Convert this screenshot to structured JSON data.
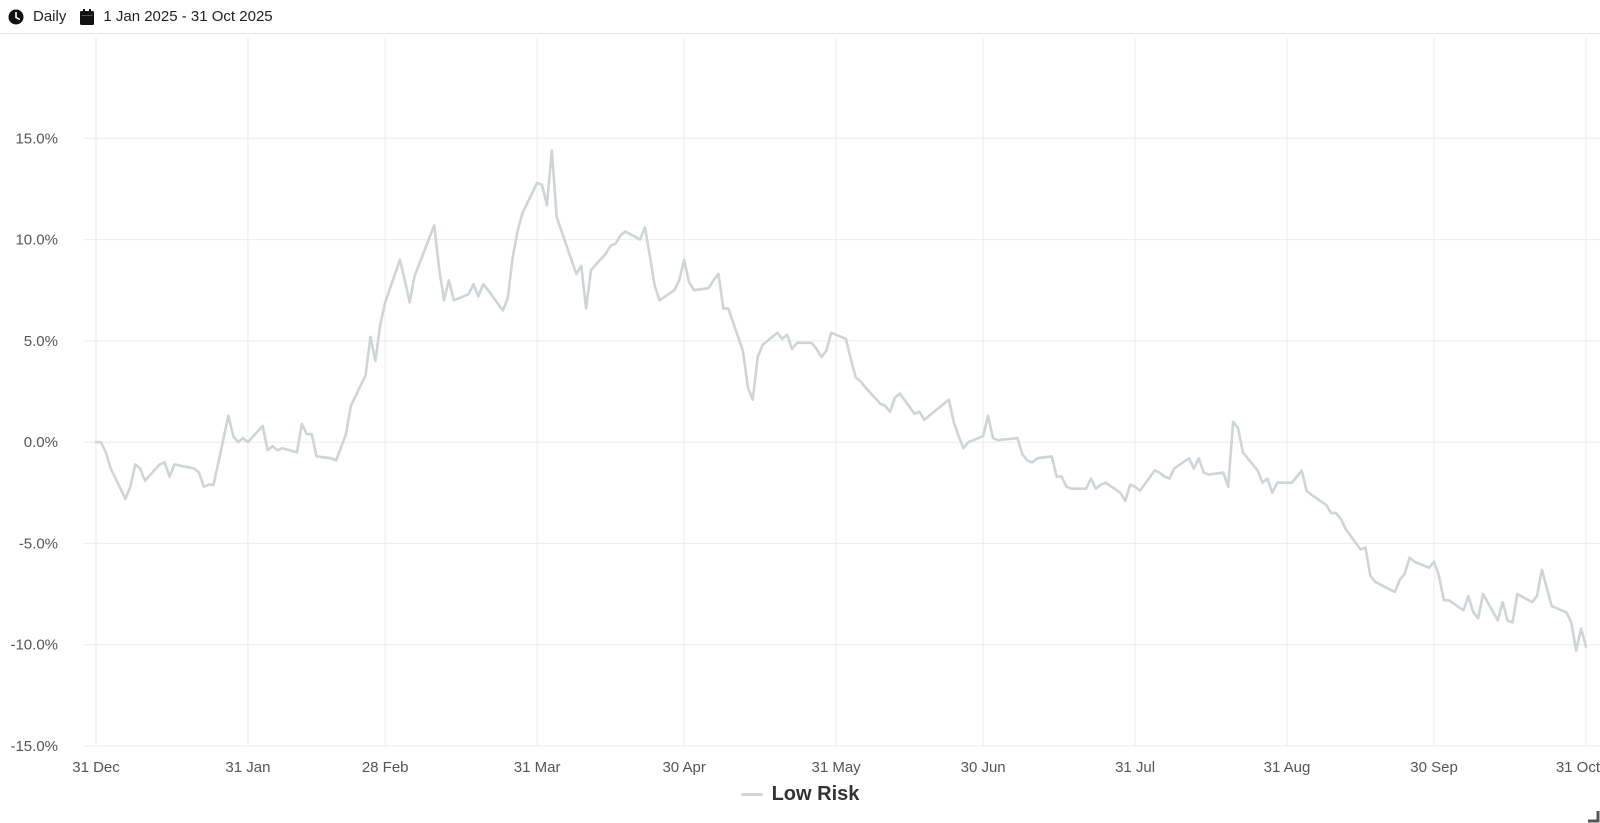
{
  "toolbar": {
    "frequency_label": "Daily",
    "frequency_icon": "clock-icon",
    "date_range_label": "1 Jan 2025 - 31 Oct 2025",
    "date_range_icon": "calendar-icon"
  },
  "colors": {
    "series_line": "#cfd4d7",
    "grid": "#ebebeb",
    "axis_text": "#555555"
  },
  "chart_data": {
    "type": "line",
    "title": "",
    "xlabel": "",
    "ylabel": "",
    "ylim": [
      -15,
      20
    ],
    "yticks": [
      -15,
      -10,
      -5,
      0,
      5,
      10,
      15
    ],
    "ytick_labels": [
      "-15.0%",
      "-10.0%",
      "-5.0%",
      "0.0%",
      "5.0%",
      "10.0%",
      "15.0%"
    ],
    "xlim": [
      "2024-12-31",
      "2025-10-31"
    ],
    "xticks": [
      "2024-12-31",
      "2025-01-31",
      "2025-02-28",
      "2025-03-31",
      "2025-04-30",
      "2025-05-31",
      "2025-06-30",
      "2025-07-31",
      "2025-08-31",
      "2025-09-30",
      "2025-10-31"
    ],
    "xtick_labels": [
      "31 Dec",
      "31 Jan",
      "28 Feb",
      "31 Mar",
      "30 Apr",
      "31 May",
      "30 Jun",
      "31 Jul",
      "31 Aug",
      "30 Sep",
      "31 Oct"
    ],
    "grid": true,
    "legend_position": "bottom-center",
    "series": [
      {
        "name": "Low Risk",
        "color": "#cfd4d7",
        "points": [
          [
            "2024-12-31",
            0.0
          ],
          [
            "2025-01-01",
            0.0
          ],
          [
            "2025-01-02",
            -0.5
          ],
          [
            "2025-01-03",
            -1.3
          ],
          [
            "2025-01-06",
            -2.8
          ],
          [
            "2025-01-07",
            -2.2
          ],
          [
            "2025-01-08",
            -1.1
          ],
          [
            "2025-01-09",
            -1.3
          ],
          [
            "2025-01-10",
            -1.9
          ],
          [
            "2025-01-13",
            -1.1
          ],
          [
            "2025-01-14",
            -1.0
          ],
          [
            "2025-01-15",
            -1.7
          ],
          [
            "2025-01-16",
            -1.1
          ],
          [
            "2025-01-20",
            -1.3
          ],
          [
            "2025-01-21",
            -1.5
          ],
          [
            "2025-01-22",
            -2.2
          ],
          [
            "2025-01-23",
            -2.1
          ],
          [
            "2025-01-24",
            -2.1
          ],
          [
            "2025-01-27",
            1.3
          ],
          [
            "2025-01-28",
            0.3
          ],
          [
            "2025-01-29",
            0.0
          ],
          [
            "2025-01-30",
            0.2
          ],
          [
            "2025-01-31",
            0.0
          ],
          [
            "2025-02-03",
            0.8
          ],
          [
            "2025-02-04",
            -0.4
          ],
          [
            "2025-02-05",
            -0.2
          ],
          [
            "2025-02-06",
            -0.4
          ],
          [
            "2025-02-07",
            -0.3
          ],
          [
            "2025-02-10",
            -0.5
          ],
          [
            "2025-02-11",
            0.9
          ],
          [
            "2025-02-12",
            0.4
          ],
          [
            "2025-02-13",
            0.4
          ],
          [
            "2025-02-14",
            -0.7
          ],
          [
            "2025-02-17",
            -0.8
          ],
          [
            "2025-02-18",
            -0.9
          ],
          [
            "2025-02-20",
            0.4
          ],
          [
            "2025-02-21",
            1.8
          ],
          [
            "2025-02-24",
            3.3
          ],
          [
            "2025-02-25",
            5.2
          ],
          [
            "2025-02-26",
            4.0
          ],
          [
            "2025-02-27",
            5.8
          ],
          [
            "2025-02-28",
            6.9
          ],
          [
            "2025-03-03",
            9.0
          ],
          [
            "2025-03-04",
            8.0
          ],
          [
            "2025-03-05",
            6.9
          ],
          [
            "2025-03-06",
            8.2
          ],
          [
            "2025-03-10",
            10.7
          ],
          [
            "2025-03-11",
            8.6
          ],
          [
            "2025-03-12",
            7.0
          ],
          [
            "2025-03-13",
            8.0
          ],
          [
            "2025-03-14",
            7.0
          ],
          [
            "2025-03-17",
            7.3
          ],
          [
            "2025-03-18",
            7.8
          ],
          [
            "2025-03-19",
            7.2
          ],
          [
            "2025-03-20",
            7.8
          ],
          [
            "2025-03-21",
            7.5
          ],
          [
            "2025-03-24",
            6.5
          ],
          [
            "2025-03-25",
            7.1
          ],
          [
            "2025-03-26",
            9.1
          ],
          [
            "2025-03-27",
            10.4
          ],
          [
            "2025-03-28",
            11.3
          ],
          [
            "2025-03-31",
            12.8
          ],
          [
            "2025-04-01",
            12.7
          ],
          [
            "2025-04-02",
            11.7
          ],
          [
            "2025-04-03",
            14.4
          ],
          [
            "2025-04-04",
            11.1
          ],
          [
            "2025-04-07",
            9.0
          ],
          [
            "2025-04-08",
            8.3
          ],
          [
            "2025-04-09",
            8.7
          ],
          [
            "2025-04-10",
            6.6
          ],
          [
            "2025-04-11",
            8.5
          ],
          [
            "2025-04-14",
            9.3
          ],
          [
            "2025-04-15",
            9.7
          ],
          [
            "2025-04-16",
            9.8
          ],
          [
            "2025-04-17",
            10.2
          ],
          [
            "2025-04-18",
            10.4
          ],
          [
            "2025-04-21",
            10.0
          ],
          [
            "2025-04-22",
            10.6
          ],
          [
            "2025-04-23",
            9.2
          ],
          [
            "2025-04-24",
            7.7
          ],
          [
            "2025-04-25",
            7.0
          ],
          [
            "2025-04-28",
            7.5
          ],
          [
            "2025-04-29",
            8.0
          ],
          [
            "2025-04-30",
            9.0
          ],
          [
            "2025-05-01",
            7.9
          ],
          [
            "2025-05-02",
            7.5
          ],
          [
            "2025-05-05",
            7.6
          ],
          [
            "2025-05-06",
            8.0
          ],
          [
            "2025-05-07",
            8.3
          ],
          [
            "2025-05-08",
            6.6
          ],
          [
            "2025-05-09",
            6.6
          ],
          [
            "2025-05-12",
            4.5
          ],
          [
            "2025-05-13",
            2.7
          ],
          [
            "2025-05-14",
            2.1
          ],
          [
            "2025-05-15",
            4.2
          ],
          [
            "2025-05-16",
            4.8
          ],
          [
            "2025-05-19",
            5.4
          ],
          [
            "2025-05-20",
            5.1
          ],
          [
            "2025-05-21",
            5.3
          ],
          [
            "2025-05-22",
            4.6
          ],
          [
            "2025-05-23",
            4.9
          ],
          [
            "2025-05-26",
            4.9
          ],
          [
            "2025-05-27",
            4.6
          ],
          [
            "2025-05-28",
            4.2
          ],
          [
            "2025-05-29",
            4.5
          ],
          [
            "2025-05-30",
            5.4
          ],
          [
            "2025-06-02",
            5.1
          ],
          [
            "2025-06-03",
            4.1
          ],
          [
            "2025-06-04",
            3.2
          ],
          [
            "2025-06-05",
            3.0
          ],
          [
            "2025-06-06",
            2.7
          ],
          [
            "2025-06-09",
            1.9
          ],
          [
            "2025-06-10",
            1.8
          ],
          [
            "2025-06-11",
            1.5
          ],
          [
            "2025-06-12",
            2.2
          ],
          [
            "2025-06-13",
            2.4
          ],
          [
            "2025-06-16",
            1.4
          ],
          [
            "2025-06-17",
            1.5
          ],
          [
            "2025-06-18",
            1.1
          ],
          [
            "2025-06-19",
            1.3
          ],
          [
            "2025-06-23",
            2.1
          ],
          [
            "2025-06-24",
            1.0
          ],
          [
            "2025-06-25",
            0.3
          ],
          [
            "2025-06-26",
            -0.3
          ],
          [
            "2025-06-27",
            0.0
          ],
          [
            "2025-06-30",
            0.3
          ],
          [
            "2025-07-01",
            1.3
          ],
          [
            "2025-07-02",
            0.2
          ],
          [
            "2025-07-03",
            0.1
          ],
          [
            "2025-07-07",
            0.2
          ],
          [
            "2025-07-08",
            -0.6
          ],
          [
            "2025-07-09",
            -0.9
          ],
          [
            "2025-07-10",
            -1.0
          ],
          [
            "2025-07-11",
            -0.8
          ],
          [
            "2025-07-14",
            -0.7
          ],
          [
            "2025-07-15",
            -1.7
          ],
          [
            "2025-07-16",
            -1.7
          ],
          [
            "2025-07-17",
            -2.2
          ],
          [
            "2025-07-18",
            -2.3
          ],
          [
            "2025-07-21",
            -2.3
          ],
          [
            "2025-07-22",
            -1.8
          ],
          [
            "2025-07-23",
            -2.3
          ],
          [
            "2025-07-24",
            -2.1
          ],
          [
            "2025-07-25",
            -2.0
          ],
          [
            "2025-07-28",
            -2.5
          ],
          [
            "2025-07-29",
            -2.9
          ],
          [
            "2025-07-30",
            -2.1
          ],
          [
            "2025-07-31",
            -2.2
          ],
          [
            "2025-08-01",
            -2.4
          ],
          [
            "2025-08-04",
            -1.4
          ],
          [
            "2025-08-05",
            -1.5
          ],
          [
            "2025-08-06",
            -1.7
          ],
          [
            "2025-08-07",
            -1.8
          ],
          [
            "2025-08-08",
            -1.3
          ],
          [
            "2025-08-11",
            -0.8
          ],
          [
            "2025-08-12",
            -1.3
          ],
          [
            "2025-08-13",
            -0.8
          ],
          [
            "2025-08-14",
            -1.5
          ],
          [
            "2025-08-15",
            -1.6
          ],
          [
            "2025-08-18",
            -1.5
          ],
          [
            "2025-08-19",
            -2.2
          ],
          [
            "2025-08-20",
            1.0
          ],
          [
            "2025-08-21",
            0.7
          ],
          [
            "2025-08-22",
            -0.5
          ],
          [
            "2025-08-25",
            -1.4
          ],
          [
            "2025-08-26",
            -2.0
          ],
          [
            "2025-08-27",
            -1.8
          ],
          [
            "2025-08-28",
            -2.5
          ],
          [
            "2025-08-29",
            -2.0
          ],
          [
            "2025-08-31",
            -2.0
          ],
          [
            "2025-09-01",
            -2.0
          ],
          [
            "2025-09-02",
            -1.7
          ],
          [
            "2025-09-03",
            -1.4
          ],
          [
            "2025-09-04",
            -2.4
          ],
          [
            "2025-09-05",
            -2.6
          ],
          [
            "2025-09-08",
            -3.1
          ],
          [
            "2025-09-09",
            -3.5
          ],
          [
            "2025-09-10",
            -3.5
          ],
          [
            "2025-09-11",
            -3.8
          ],
          [
            "2025-09-12",
            -4.3
          ],
          [
            "2025-09-15",
            -5.3
          ],
          [
            "2025-09-16",
            -5.2
          ],
          [
            "2025-09-17",
            -6.6
          ],
          [
            "2025-09-18",
            -6.9
          ],
          [
            "2025-09-22",
            -7.4
          ],
          [
            "2025-09-23",
            -6.8
          ],
          [
            "2025-09-24",
            -6.5
          ],
          [
            "2025-09-25",
            -5.7
          ],
          [
            "2025-09-26",
            -5.9
          ],
          [
            "2025-09-29",
            -6.2
          ],
          [
            "2025-09-30",
            -5.9
          ],
          [
            "2025-10-01",
            -6.6
          ],
          [
            "2025-10-02",
            -7.8
          ],
          [
            "2025-10-03",
            -7.8
          ],
          [
            "2025-10-06",
            -8.3
          ],
          [
            "2025-10-07",
            -7.6
          ],
          [
            "2025-10-08",
            -8.4
          ],
          [
            "2025-10-09",
            -8.7
          ],
          [
            "2025-10-10",
            -7.5
          ],
          [
            "2025-10-13",
            -8.8
          ],
          [
            "2025-10-14",
            -7.9
          ],
          [
            "2025-10-15",
            -8.8
          ],
          [
            "2025-10-16",
            -8.9
          ],
          [
            "2025-10-17",
            -7.5
          ],
          [
            "2025-10-20",
            -7.9
          ],
          [
            "2025-10-21",
            -7.6
          ],
          [
            "2025-10-22",
            -6.3
          ],
          [
            "2025-10-23",
            -7.2
          ],
          [
            "2025-10-24",
            -8.1
          ],
          [
            "2025-10-27",
            -8.4
          ],
          [
            "2025-10-28",
            -8.9
          ],
          [
            "2025-10-29",
            -10.3
          ],
          [
            "2025-10-30",
            -9.2
          ],
          [
            "2025-10-31",
            -10.1
          ]
        ]
      }
    ]
  }
}
